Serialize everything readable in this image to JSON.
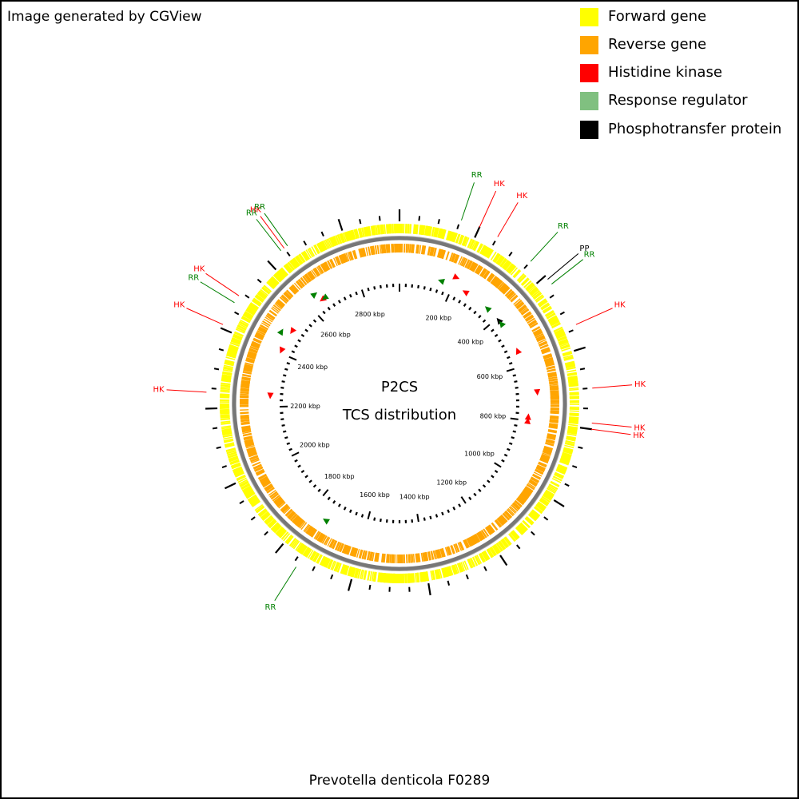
{
  "credit": "Image generated by CGView",
  "footer": "Prevotella denticola F0289",
  "center": {
    "line1": "P2CS",
    "line2": "TCS distribution"
  },
  "legend": [
    {
      "label": "Forward gene",
      "color": "#ffff00",
      "icon": "forward-gene-swatch-icon"
    },
    {
      "label": "Reverse gene",
      "color": "#ffa500",
      "icon": "reverse-gene-swatch-icon"
    },
    {
      "label": "Histidine kinase",
      "color": "#ff0000",
      "icon": "histidine-kinase-swatch-icon"
    },
    {
      "label": "Response regulator",
      "color": "#80c080",
      "icon": "response-regulator-swatch-icon"
    },
    {
      "label": "Phosphotransfer protein",
      "color": "#000000",
      "icon": "phosphotransfer-swatch-icon"
    }
  ],
  "genome": {
    "length_kbp": 2950
  },
  "scale_labels_kbp": [
    200,
    400,
    600,
    800,
    1000,
    1200,
    1400,
    1600,
    1800,
    2000,
    2200,
    2400,
    2600,
    2800
  ],
  "features": [
    {
      "type": "RR",
      "label": "RR",
      "pos_kbp": 350,
      "strand": "reverse",
      "color": "#008000"
    },
    {
      "type": "RR",
      "label": "RR",
      "pos_kbp": 153,
      "strand": "reverse",
      "color": "#008000"
    },
    {
      "type": "HK",
      "label": "HK",
      "pos_kbp": 200,
      "strand": "forward",
      "color": "#ff0000"
    },
    {
      "type": "HK",
      "label": "HK",
      "pos_kbp": 250,
      "strand": "reverse",
      "color": "#ff0000"
    },
    {
      "type": "PP",
      "label": "PP",
      "pos_kbp": 410,
      "strand": "reverse",
      "color": "#000000"
    },
    {
      "type": "RR",
      "label": "RR",
      "pos_kbp": 425,
      "strand": "reverse",
      "color": "#008000"
    },
    {
      "type": "HK",
      "label": "HK",
      "pos_kbp": 540,
      "strand": "reverse",
      "color": "#ff0000"
    },
    {
      "type": "HK",
      "label": "HK",
      "pos_kbp": 700,
      "strand": "forward",
      "color": "#ff0000"
    },
    {
      "type": "HK",
      "label": "HK",
      "pos_kbp": 785,
      "strand": "reverse",
      "color": "#ff0000"
    },
    {
      "type": "HK",
      "label": "HK",
      "pos_kbp": 800,
      "strand": "reverse",
      "color": "#ff0000"
    },
    {
      "type": "RR",
      "label": "RR",
      "pos_kbp": 1740,
      "strand": "forward",
      "color": "#008000"
    },
    {
      "type": "HK",
      "label": "HK",
      "pos_kbp": 2240,
      "strand": "reverse",
      "color": "#ff0000"
    },
    {
      "type": "HK",
      "label": "HK",
      "pos_kbp": 2410,
      "strand": "reverse",
      "color": "#ff0000"
    },
    {
      "type": "HK",
      "label": "HK",
      "pos_kbp": 2490,
      "strand": "reverse",
      "color": "#ff0000"
    },
    {
      "type": "RR",
      "label": "RR",
      "pos_kbp": 2470,
      "strand": "forward",
      "color": "#008000"
    },
    {
      "type": "RR",
      "label": "RR",
      "pos_kbp": 2640,
      "strand": "forward",
      "color": "#008000"
    },
    {
      "type": "HK",
      "label": "HK",
      "pos_kbp": 2650,
      "strand": "reverse",
      "color": "#ff0000"
    },
    {
      "type": "RR",
      "label": "RR",
      "pos_kbp": 2660,
      "strand": "reverse",
      "color": "#008000"
    }
  ]
}
